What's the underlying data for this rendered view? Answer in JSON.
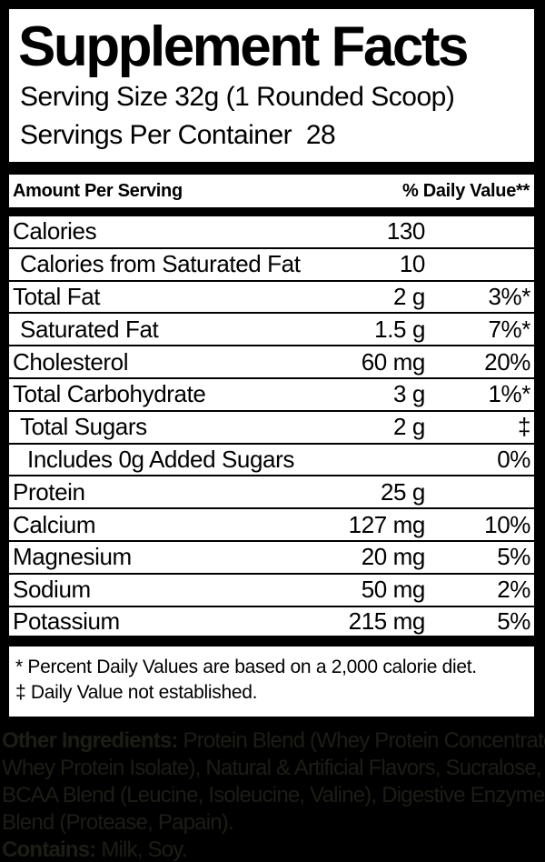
{
  "label": {
    "title": "Supplement Facts",
    "serving_size": "Serving Size 32g (1 Rounded Scoop)",
    "servings_per_container": "Servings Per Container  28",
    "column_header": {
      "left": "Amount Per Serving",
      "right": "% Daily Value**"
    },
    "rows": [
      {
        "name": "Calories",
        "amount": "130",
        "dv": "",
        "indent": 0
      },
      {
        "name": "Calories from Saturated Fat",
        "amount": "10",
        "dv": "",
        "indent": 1
      },
      {
        "name": "Total Fat",
        "amount": "2 g",
        "dv": "3%*",
        "indent": 0
      },
      {
        "name": "Saturated Fat",
        "amount": "1.5 g",
        "dv": "7%*",
        "indent": 1
      },
      {
        "name": "Cholesterol",
        "amount": "60 mg",
        "dv": "20%",
        "indent": 0
      },
      {
        "name": "Total Carbohydrate",
        "amount": "3 g",
        "dv": "1%*",
        "indent": 0
      },
      {
        "name": "Total Sugars",
        "amount": "2 g",
        "dv": "‡",
        "indent": 1
      },
      {
        "name": "Includes 0g Added Sugars",
        "amount": "",
        "dv": "0%",
        "indent": 2
      },
      {
        "name": "Protein",
        "amount": "25 g",
        "dv": "",
        "indent": 0
      },
      {
        "name": "Calcium",
        "amount": "127 mg",
        "dv": "10%",
        "indent": 0
      },
      {
        "name": "Magnesium",
        "amount": "20 mg",
        "dv": "5%",
        "indent": 0
      },
      {
        "name": "Sodium",
        "amount": "50 mg",
        "dv": "2%",
        "indent": 0
      },
      {
        "name": "Potassium",
        "amount": "215 mg",
        "dv": "5%",
        "indent": 0
      }
    ],
    "footnotes": [
      "* Percent Daily Values are based on a 2,000 calorie diet.",
      "‡ Daily Value not established."
    ]
  },
  "other_ingredients": {
    "lines": [
      {
        "bold": "Other Ingredients:",
        "text": " Protein Blend (Whey Protein Concentrate,"
      },
      {
        "bold": "",
        "text": "Whey Protein Isolate), Natural & Artificial Flavors, Sucralose,"
      },
      {
        "bold": "",
        "text": "BCAA Blend (Leucine, Isoleucine, Valine), Digestive Enzyme"
      },
      {
        "bold": "",
        "text": "Blend (Protease, Papain)."
      },
      {
        "bold": "Contains:",
        "text": " Milk, Soy."
      }
    ]
  },
  "colors": {
    "page_background": "#000000",
    "label_background": "#ffffff",
    "label_text": "#000000",
    "ingredients_text": "#1d1d17"
  }
}
